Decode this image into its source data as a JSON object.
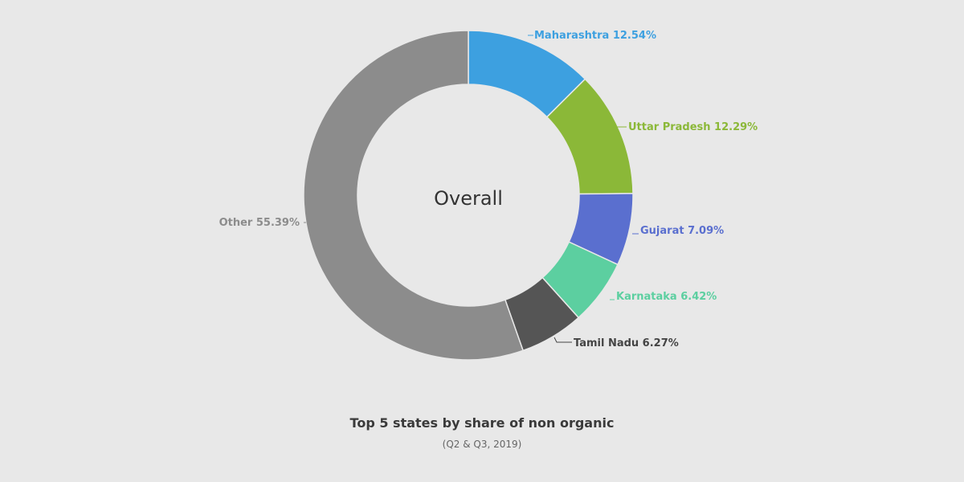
{
  "chart_data": {
    "type": "pie",
    "donut": true,
    "center_label": "Overall",
    "title": "Top 5 states by share of non organic",
    "subtitle": "(Q2 & Q3, 2019)",
    "legend": "none",
    "slices": [
      {
        "name": "Maharashtra",
        "value": 12.54,
        "label": "Maharashtra 12.54%",
        "color": "#3da0e0"
      },
      {
        "name": "Uttar Pradesh",
        "value": 12.29,
        "label": "Uttar Pradesh 12.29%",
        "color": "#8bb838"
      },
      {
        "name": "Gujarat",
        "value": 7.09,
        "label": "Gujarat 7.09%",
        "color": "#5a6fcf"
      },
      {
        "name": "Karnataka",
        "value": 6.42,
        "label": "Karnataka 6.42%",
        "color": "#5ccfa0"
      },
      {
        "name": "Tamil Nadu",
        "value": 6.27,
        "label": "Tamil Nadu 6.27%",
        "color": "#555555"
      },
      {
        "name": "Other",
        "value": 55.39,
        "label": "Other 55.39%",
        "color": "#8c8c8c"
      }
    ],
    "label_colors": [
      "#3da0e0",
      "#8bb838",
      "#5a6fcf",
      "#5ccfa0",
      "#444444",
      "#8c8c8c"
    ]
  }
}
